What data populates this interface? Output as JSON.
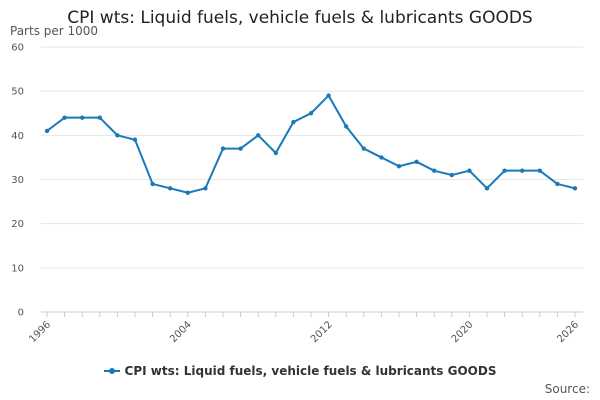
{
  "colors": {
    "series": "#1a7ab8",
    "grid": "#e6e6e6",
    "axis": "#cccccc"
  },
  "source_label": "Source:",
  "chart_data": {
    "type": "line",
    "title": "CPI wts: Liquid fuels, vehicle fuels & lubricants GOODS",
    "ylabel": "Parts per 1000",
    "xlabel": "",
    "xlim": [
      1996,
      2026
    ],
    "ylim": [
      0,
      60
    ],
    "x_ticks": [
      1996,
      2004,
      2012,
      2020,
      2026
    ],
    "y_ticks": [
      0,
      10,
      20,
      30,
      40,
      50,
      60
    ],
    "grid": true,
    "legend_position": "bottom",
    "series": [
      {
        "name": "CPI wts: Liquid fuels, vehicle fuels & lubricants GOODS",
        "x": [
          1996,
          1997,
          1998,
          1999,
          2000,
          2001,
          2002,
          2003,
          2004,
          2005,
          2006,
          2007,
          2008,
          2009,
          2010,
          2011,
          2012,
          2013,
          2014,
          2015,
          2016,
          2017,
          2018,
          2019,
          2020,
          2021,
          2022,
          2023,
          2024,
          2025,
          2026
        ],
        "values": [
          41,
          44,
          44,
          44,
          40,
          39,
          29,
          28,
          27,
          28,
          37,
          37,
          40,
          36,
          43,
          45,
          49,
          42,
          37,
          35,
          33,
          34,
          32,
          31,
          32,
          28,
          32,
          32,
          32,
          29,
          28
        ]
      }
    ]
  }
}
